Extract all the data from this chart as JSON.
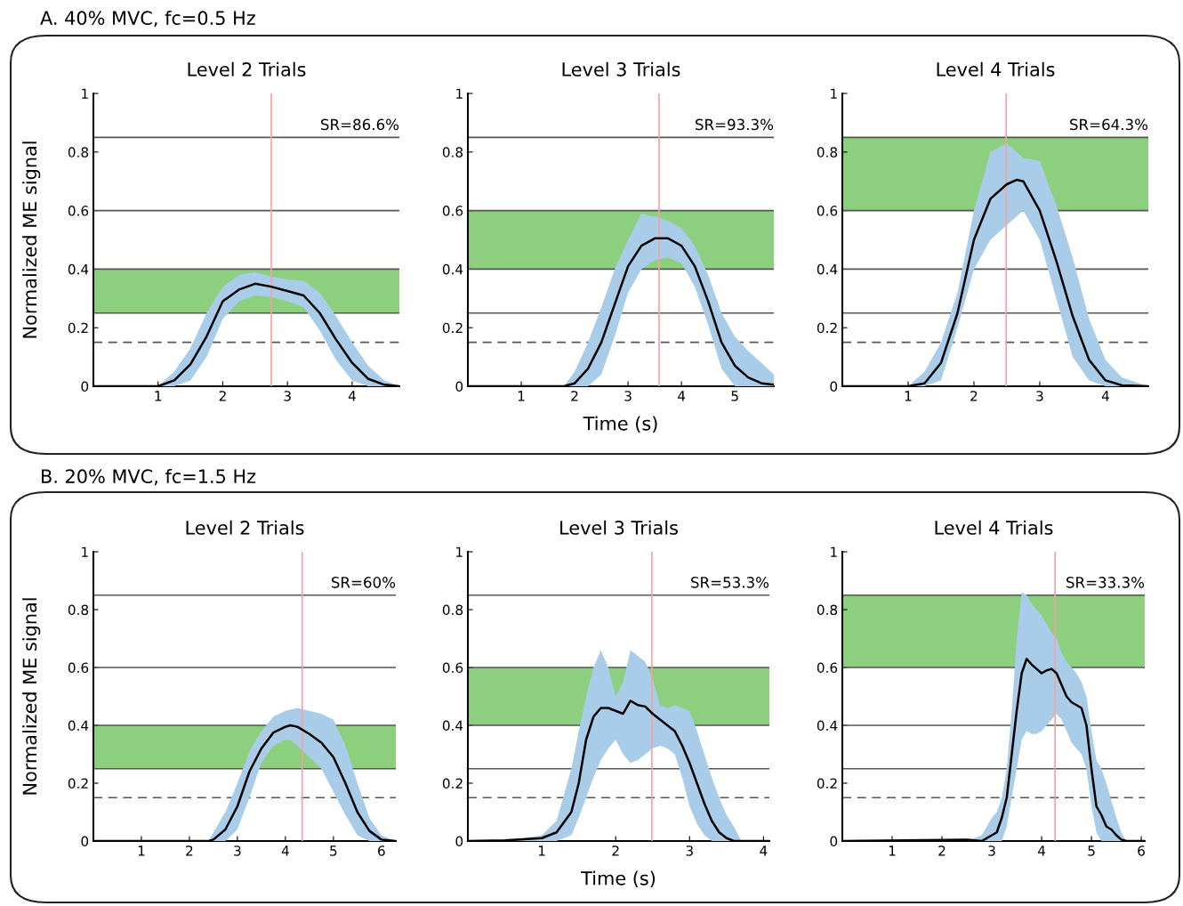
{
  "chart_data": [
    {
      "type": "line",
      "title": "Level 2 Trials",
      "subtitle": "A. 40% MVC, fc=0.5 Hz",
      "ylabel": "Normalized ME signal",
      "annotations": [
        "SR=86.6%"
      ],
      "x": [
        0,
        1.0,
        1.25,
        1.5,
        1.75,
        2.0,
        2.25,
        2.5,
        2.75,
        3.0,
        3.25,
        3.5,
        3.75,
        4.0,
        4.25,
        4.5,
        4.73
      ],
      "series": [
        {
          "color": "#000000",
          "values": [
            0,
            0,
            0.02,
            0.075,
            0.17,
            0.29,
            0.33,
            0.35,
            0.34,
            0.325,
            0.31,
            0.25,
            0.16,
            0.08,
            0.025,
            0.005,
            0
          ],
          "upper": [
            0,
            0,
            0.05,
            0.13,
            0.25,
            0.34,
            0.38,
            0.39,
            0.375,
            0.365,
            0.36,
            0.32,
            0.24,
            0.15,
            0.07,
            0.02,
            0
          ],
          "lower": [
            0,
            0,
            0,
            0.02,
            0.1,
            0.23,
            0.29,
            0.31,
            0.305,
            0.29,
            0.27,
            0.19,
            0.09,
            0.02,
            0,
            0,
            0
          ]
        }
      ],
      "xlim": [
        0,
        4.73
      ],
      "xticks": [
        1,
        2,
        3,
        4
      ],
      "ylim": [
        0,
        1
      ],
      "yticks": [
        0,
        0.2,
        0.4,
        0.6,
        0.8,
        1
      ],
      "bands": [
        {
          "axis": "y",
          "from": 0.25,
          "to": 0.4,
          "color": "#8ccf7e"
        }
      ],
      "ref_lines": [
        {
          "axis": "y",
          "value": 0.85,
          "color": "#555555"
        },
        {
          "axis": "y",
          "value": 0.6,
          "color": "#555555"
        },
        {
          "axis": "y",
          "value": 0.4,
          "color": "#555555"
        },
        {
          "axis": "y",
          "value": 0.25,
          "color": "#555555"
        },
        {
          "axis": "y",
          "value": 0.15,
          "color": "#555555",
          "line_style": "dashed"
        },
        {
          "axis": "x",
          "value": 2.75,
          "color": "#f4a0a8"
        }
      ]
    },
    {
      "type": "line",
      "title": "Level 3 Trials",
      "xlabel": "Time (s)",
      "annotations": [
        "SR=93.3%"
      ],
      "x": [
        0,
        1.8,
        2.0,
        2.25,
        2.5,
        2.75,
        3.0,
        3.25,
        3.5,
        3.75,
        4.0,
        4.25,
        4.5,
        4.75,
        5.0,
        5.25,
        5.5,
        5.73
      ],
      "series": [
        {
          "color": "#000000",
          "values": [
            0,
            0,
            0.01,
            0.06,
            0.15,
            0.28,
            0.41,
            0.48,
            0.505,
            0.505,
            0.48,
            0.41,
            0.29,
            0.15,
            0.07,
            0.03,
            0.01,
            0.005
          ],
          "upper": [
            0,
            0,
            0.05,
            0.15,
            0.27,
            0.4,
            0.5,
            0.59,
            0.58,
            0.565,
            0.54,
            0.48,
            0.38,
            0.25,
            0.17,
            0.12,
            0.08,
            0.04
          ],
          "lower": [
            0,
            0,
            0,
            0,
            0.04,
            0.17,
            0.32,
            0.4,
            0.43,
            0.44,
            0.42,
            0.34,
            0.21,
            0.06,
            0,
            0,
            0,
            0
          ]
        }
      ],
      "xlim": [
        0,
        5.73
      ],
      "xticks": [
        1,
        2,
        3,
        4,
        5
      ],
      "ylim": [
        0,
        1
      ],
      "yticks": [
        0,
        0.2,
        0.4,
        0.6,
        0.8,
        1
      ],
      "bands": [
        {
          "axis": "y",
          "from": 0.4,
          "to": 0.6,
          "color": "#8ccf7e"
        }
      ],
      "ref_lines": [
        {
          "axis": "y",
          "value": 0.85,
          "color": "#555555"
        },
        {
          "axis": "y",
          "value": 0.6,
          "color": "#555555"
        },
        {
          "axis": "y",
          "value": 0.4,
          "color": "#555555"
        },
        {
          "axis": "y",
          "value": 0.25,
          "color": "#555555"
        },
        {
          "axis": "y",
          "value": 0.15,
          "color": "#555555",
          "line_style": "dashed"
        },
        {
          "axis": "x",
          "value": 3.58,
          "color": "#f4a0a8"
        }
      ]
    },
    {
      "type": "line",
      "title": "Level 4 Trials",
      "annotations": [
        "SR=64.3%"
      ],
      "x": [
        0,
        1.0,
        1.25,
        1.5,
        1.75,
        2.0,
        2.25,
        2.5,
        2.65,
        2.75,
        3.0,
        3.25,
        3.5,
        3.75,
        4.0,
        4.25,
        4.65
      ],
      "series": [
        {
          "color": "#000000",
          "values": [
            0,
            0,
            0.01,
            0.08,
            0.25,
            0.5,
            0.64,
            0.69,
            0.705,
            0.7,
            0.6,
            0.43,
            0.24,
            0.09,
            0.02,
            0.003,
            0
          ],
          "upper": [
            0,
            0,
            0.05,
            0.15,
            0.32,
            0.6,
            0.8,
            0.83,
            0.8,
            0.78,
            0.77,
            0.62,
            0.44,
            0.23,
            0.09,
            0.03,
            0
          ],
          "lower": [
            0,
            0,
            0,
            0.02,
            0.2,
            0.4,
            0.5,
            0.55,
            0.58,
            0.6,
            0.5,
            0.3,
            0.1,
            0.02,
            0,
            0,
            0
          ]
        }
      ],
      "xlim": [
        0,
        4.65
      ],
      "xticks": [
        1,
        2,
        3,
        4
      ],
      "ylim": [
        0,
        1
      ],
      "yticks": [
        0,
        0.2,
        0.4,
        0.6,
        0.8,
        1
      ],
      "bands": [
        {
          "axis": "y",
          "from": 0.6,
          "to": 0.85,
          "color": "#8ccf7e"
        }
      ],
      "ref_lines": [
        {
          "axis": "y",
          "value": 0.85,
          "color": "#555555"
        },
        {
          "axis": "y",
          "value": 0.6,
          "color": "#555555"
        },
        {
          "axis": "y",
          "value": 0.4,
          "color": "#555555"
        },
        {
          "axis": "y",
          "value": 0.25,
          "color": "#555555"
        },
        {
          "axis": "y",
          "value": 0.15,
          "color": "#555555",
          "line_style": "dashed"
        },
        {
          "axis": "x",
          "value": 2.49,
          "color": "#f4a0a8"
        }
      ]
    },
    {
      "type": "line",
      "title": "Level 2 Trials",
      "subtitle": "B. 20% MVC, fc=1.5 Hz",
      "ylabel": "Normalized ME signal",
      "annotations": [
        "SR=60%"
      ],
      "x": [
        0,
        2.4,
        2.5,
        2.75,
        3.0,
        3.25,
        3.5,
        3.75,
        4.0,
        4.1,
        4.25,
        4.5,
        4.75,
        5.0,
        5.25,
        5.5,
        5.75,
        6.0,
        6.3
      ],
      "series": [
        {
          "color": "#000000",
          "values": [
            0,
            0,
            0.005,
            0.04,
            0.12,
            0.24,
            0.32,
            0.375,
            0.395,
            0.4,
            0.395,
            0.37,
            0.34,
            0.29,
            0.2,
            0.1,
            0.035,
            0.005,
            0
          ],
          "upper": [
            0,
            0,
            0.03,
            0.1,
            0.2,
            0.31,
            0.38,
            0.43,
            0.45,
            0.455,
            0.46,
            0.45,
            0.44,
            0.42,
            0.33,
            0.2,
            0.08,
            0.02,
            0
          ],
          "lower": [
            0,
            0,
            0,
            0,
            0.04,
            0.15,
            0.27,
            0.33,
            0.35,
            0.35,
            0.33,
            0.29,
            0.25,
            0.17,
            0.09,
            0.02,
            0,
            0,
            0
          ]
        }
      ],
      "xlim": [
        0,
        6.3
      ],
      "xticks": [
        1,
        2,
        3,
        4,
        5,
        6
      ],
      "ylim": [
        0,
        1
      ],
      "yticks": [
        0,
        0.2,
        0.4,
        0.6,
        0.8,
        1
      ],
      "bands": [
        {
          "axis": "y",
          "from": 0.25,
          "to": 0.4,
          "color": "#8ccf7e"
        }
      ],
      "ref_lines": [
        {
          "axis": "y",
          "value": 0.85,
          "color": "#555555"
        },
        {
          "axis": "y",
          "value": 0.6,
          "color": "#555555"
        },
        {
          "axis": "y",
          "value": 0.4,
          "color": "#555555"
        },
        {
          "axis": "y",
          "value": 0.25,
          "color": "#555555"
        },
        {
          "axis": "y",
          "value": 0.15,
          "color": "#555555",
          "line_style": "dashed"
        },
        {
          "axis": "x",
          "value": 4.35,
          "color": "#f4a0a8"
        }
      ]
    },
    {
      "type": "line",
      "title": "Level 3 Trials",
      "xlabel": "Time (s)",
      "annotations": [
        "SR=53.3%"
      ],
      "x": [
        0,
        0.5,
        1.0,
        1.2,
        1.4,
        1.5,
        1.6,
        1.7,
        1.8,
        1.9,
        2.0,
        2.1,
        2.2,
        2.3,
        2.4,
        2.5,
        2.6,
        2.7,
        2.8,
        2.9,
        3.0,
        3.1,
        3.2,
        3.3,
        3.4,
        3.5,
        3.6,
        3.7,
        4.08
      ],
      "series": [
        {
          "color": "#000000",
          "values": [
            0,
            0.002,
            0.01,
            0.03,
            0.1,
            0.2,
            0.35,
            0.43,
            0.46,
            0.46,
            0.45,
            0.44,
            0.485,
            0.47,
            0.465,
            0.44,
            0.42,
            0.4,
            0.38,
            0.33,
            0.27,
            0.2,
            0.13,
            0.07,
            0.03,
            0.01,
            0,
            0,
            0
          ],
          "upper": [
            0,
            0,
            0.02,
            0.07,
            0.25,
            0.38,
            0.5,
            0.6,
            0.66,
            0.6,
            0.5,
            0.55,
            0.66,
            0.64,
            0.62,
            0.56,
            0.47,
            0.46,
            0.47,
            0.46,
            0.45,
            0.38,
            0.3,
            0.22,
            0.15,
            0.09,
            0.05,
            0,
            0
          ],
          "lower": [
            0,
            0,
            0,
            0,
            0.02,
            0.08,
            0.15,
            0.22,
            0.28,
            0.32,
            0.35,
            0.3,
            0.27,
            0.28,
            0.3,
            0.32,
            0.33,
            0.32,
            0.3,
            0.22,
            0.12,
            0.06,
            0.02,
            0,
            0,
            0,
            0,
            0,
            0
          ]
        }
      ],
      "xlim": [
        0,
        4.08
      ],
      "xticks": [
        1,
        2,
        3,
        4
      ],
      "ylim": [
        0,
        1
      ],
      "yticks": [
        0,
        0.2,
        0.4,
        0.6,
        0.8,
        1
      ],
      "bands": [
        {
          "axis": "y",
          "from": 0.4,
          "to": 0.6,
          "color": "#8ccf7e"
        }
      ],
      "ref_lines": [
        {
          "axis": "y",
          "value": 0.85,
          "color": "#555555"
        },
        {
          "axis": "y",
          "value": 0.6,
          "color": "#555555"
        },
        {
          "axis": "y",
          "value": 0.4,
          "color": "#555555"
        },
        {
          "axis": "y",
          "value": 0.25,
          "color": "#555555"
        },
        {
          "axis": "y",
          "value": 0.15,
          "color": "#555555",
          "line_style": "dashed"
        },
        {
          "axis": "x",
          "value": 2.49,
          "color": "#f4a0a8"
        }
      ]
    },
    {
      "type": "line",
      "title": "Level 4 Trials",
      "annotations": [
        "SR=33.3%"
      ],
      "x": [
        0,
        2.5,
        2.8,
        3.0,
        3.1,
        3.2,
        3.3,
        3.4,
        3.5,
        3.6,
        3.7,
        3.8,
        3.9,
        4.0,
        4.1,
        4.2,
        4.3,
        4.4,
        4.5,
        4.6,
        4.7,
        4.8,
        4.9,
        5.0,
        5.1,
        5.2,
        5.3,
        5.4,
        5.5,
        5.6,
        5.7,
        6.07
      ],
      "series": [
        {
          "color": "#000000",
          "values": [
            0,
            0.005,
            0,
            0.02,
            0.03,
            0.08,
            0.15,
            0.3,
            0.45,
            0.58,
            0.63,
            0.61,
            0.595,
            0.58,
            0.59,
            0.595,
            0.58,
            0.54,
            0.5,
            0.48,
            0.47,
            0.46,
            0.4,
            0.25,
            0.12,
            0.09,
            0.05,
            0.04,
            0.02,
            0.005,
            0,
            0
          ],
          "upper": [
            0,
            0,
            0.02,
            0.08,
            0.1,
            0.15,
            0.25,
            0.45,
            0.7,
            0.86,
            0.85,
            0.82,
            0.8,
            0.78,
            0.75,
            0.72,
            0.7,
            0.65,
            0.62,
            0.6,
            0.58,
            0.55,
            0.5,
            0.38,
            0.28,
            0.25,
            0.2,
            0.14,
            0.08,
            0.03,
            0,
            0
          ],
          "lower": [
            0,
            0,
            0,
            0,
            0,
            0,
            0.05,
            0.15,
            0.25,
            0.35,
            0.38,
            0.37,
            0.37,
            0.38,
            0.4,
            0.42,
            0.44,
            0.42,
            0.38,
            0.34,
            0.32,
            0.3,
            0.25,
            0.12,
            0.03,
            0,
            0,
            0,
            0,
            0,
            0,
            0
          ]
        }
      ],
      "xlim": [
        0,
        6.07
      ],
      "xticks": [
        1,
        2,
        3,
        4,
        5,
        6
      ],
      "ylim": [
        0,
        1
      ],
      "yticks": [
        0,
        0.2,
        0.4,
        0.6,
        0.8,
        1
      ],
      "bands": [
        {
          "axis": "y",
          "from": 0.6,
          "to": 0.85,
          "color": "#8ccf7e"
        }
      ],
      "ref_lines": [
        {
          "axis": "y",
          "value": 0.85,
          "color": "#555555"
        },
        {
          "axis": "y",
          "value": 0.6,
          "color": "#555555"
        },
        {
          "axis": "y",
          "value": 0.4,
          "color": "#555555"
        },
        {
          "axis": "y",
          "value": 0.25,
          "color": "#555555"
        },
        {
          "axis": "y",
          "value": 0.15,
          "color": "#555555",
          "line_style": "dashed"
        },
        {
          "axis": "x",
          "value": 4.27,
          "color": "#f4a0a8"
        }
      ]
    }
  ]
}
